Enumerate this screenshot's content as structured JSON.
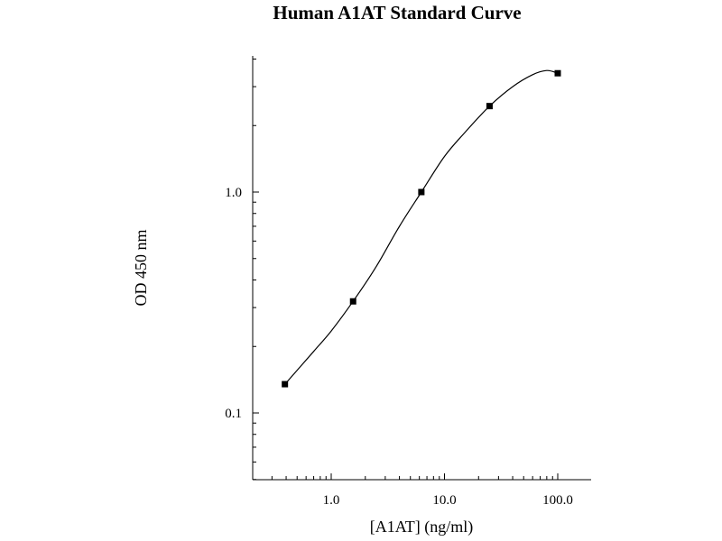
{
  "chart_data": {
    "type": "line",
    "title": "Human A1AT Standard Curve",
    "xlabel": "[A1AT] (ng/ml)",
    "ylabel": "OD 450 nm",
    "xscale": "log",
    "yscale": "log",
    "xlim": [
      0.3,
      200
    ],
    "ylim": [
      0.05,
      4
    ],
    "x_ticks": [
      1.0,
      10.0,
      100.0
    ],
    "x_tick_labels": [
      "1.0",
      "10.0",
      "100.0"
    ],
    "y_ticks": [
      0.1,
      1.0
    ],
    "y_tick_labels": [
      "0.1",
      "1.0"
    ],
    "grid": false,
    "series": [
      {
        "x": [
          0.39,
          1.56,
          6.25,
          25,
          100
        ],
        "y": [
          0.135,
          0.32,
          1.0,
          2.45,
          3.45
        ],
        "marker": "square",
        "color": "#000000"
      }
    ],
    "curve_fit": {
      "x": [
        0.39,
        0.7,
        1.0,
        1.56,
        2.5,
        4.0,
        6.25,
        10,
        15,
        25,
        40,
        60,
        80,
        100
      ],
      "y": [
        0.135,
        0.19,
        0.235,
        0.32,
        0.46,
        0.7,
        1.0,
        1.45,
        1.85,
        2.45,
        3.0,
        3.4,
        3.55,
        3.45
      ]
    }
  }
}
